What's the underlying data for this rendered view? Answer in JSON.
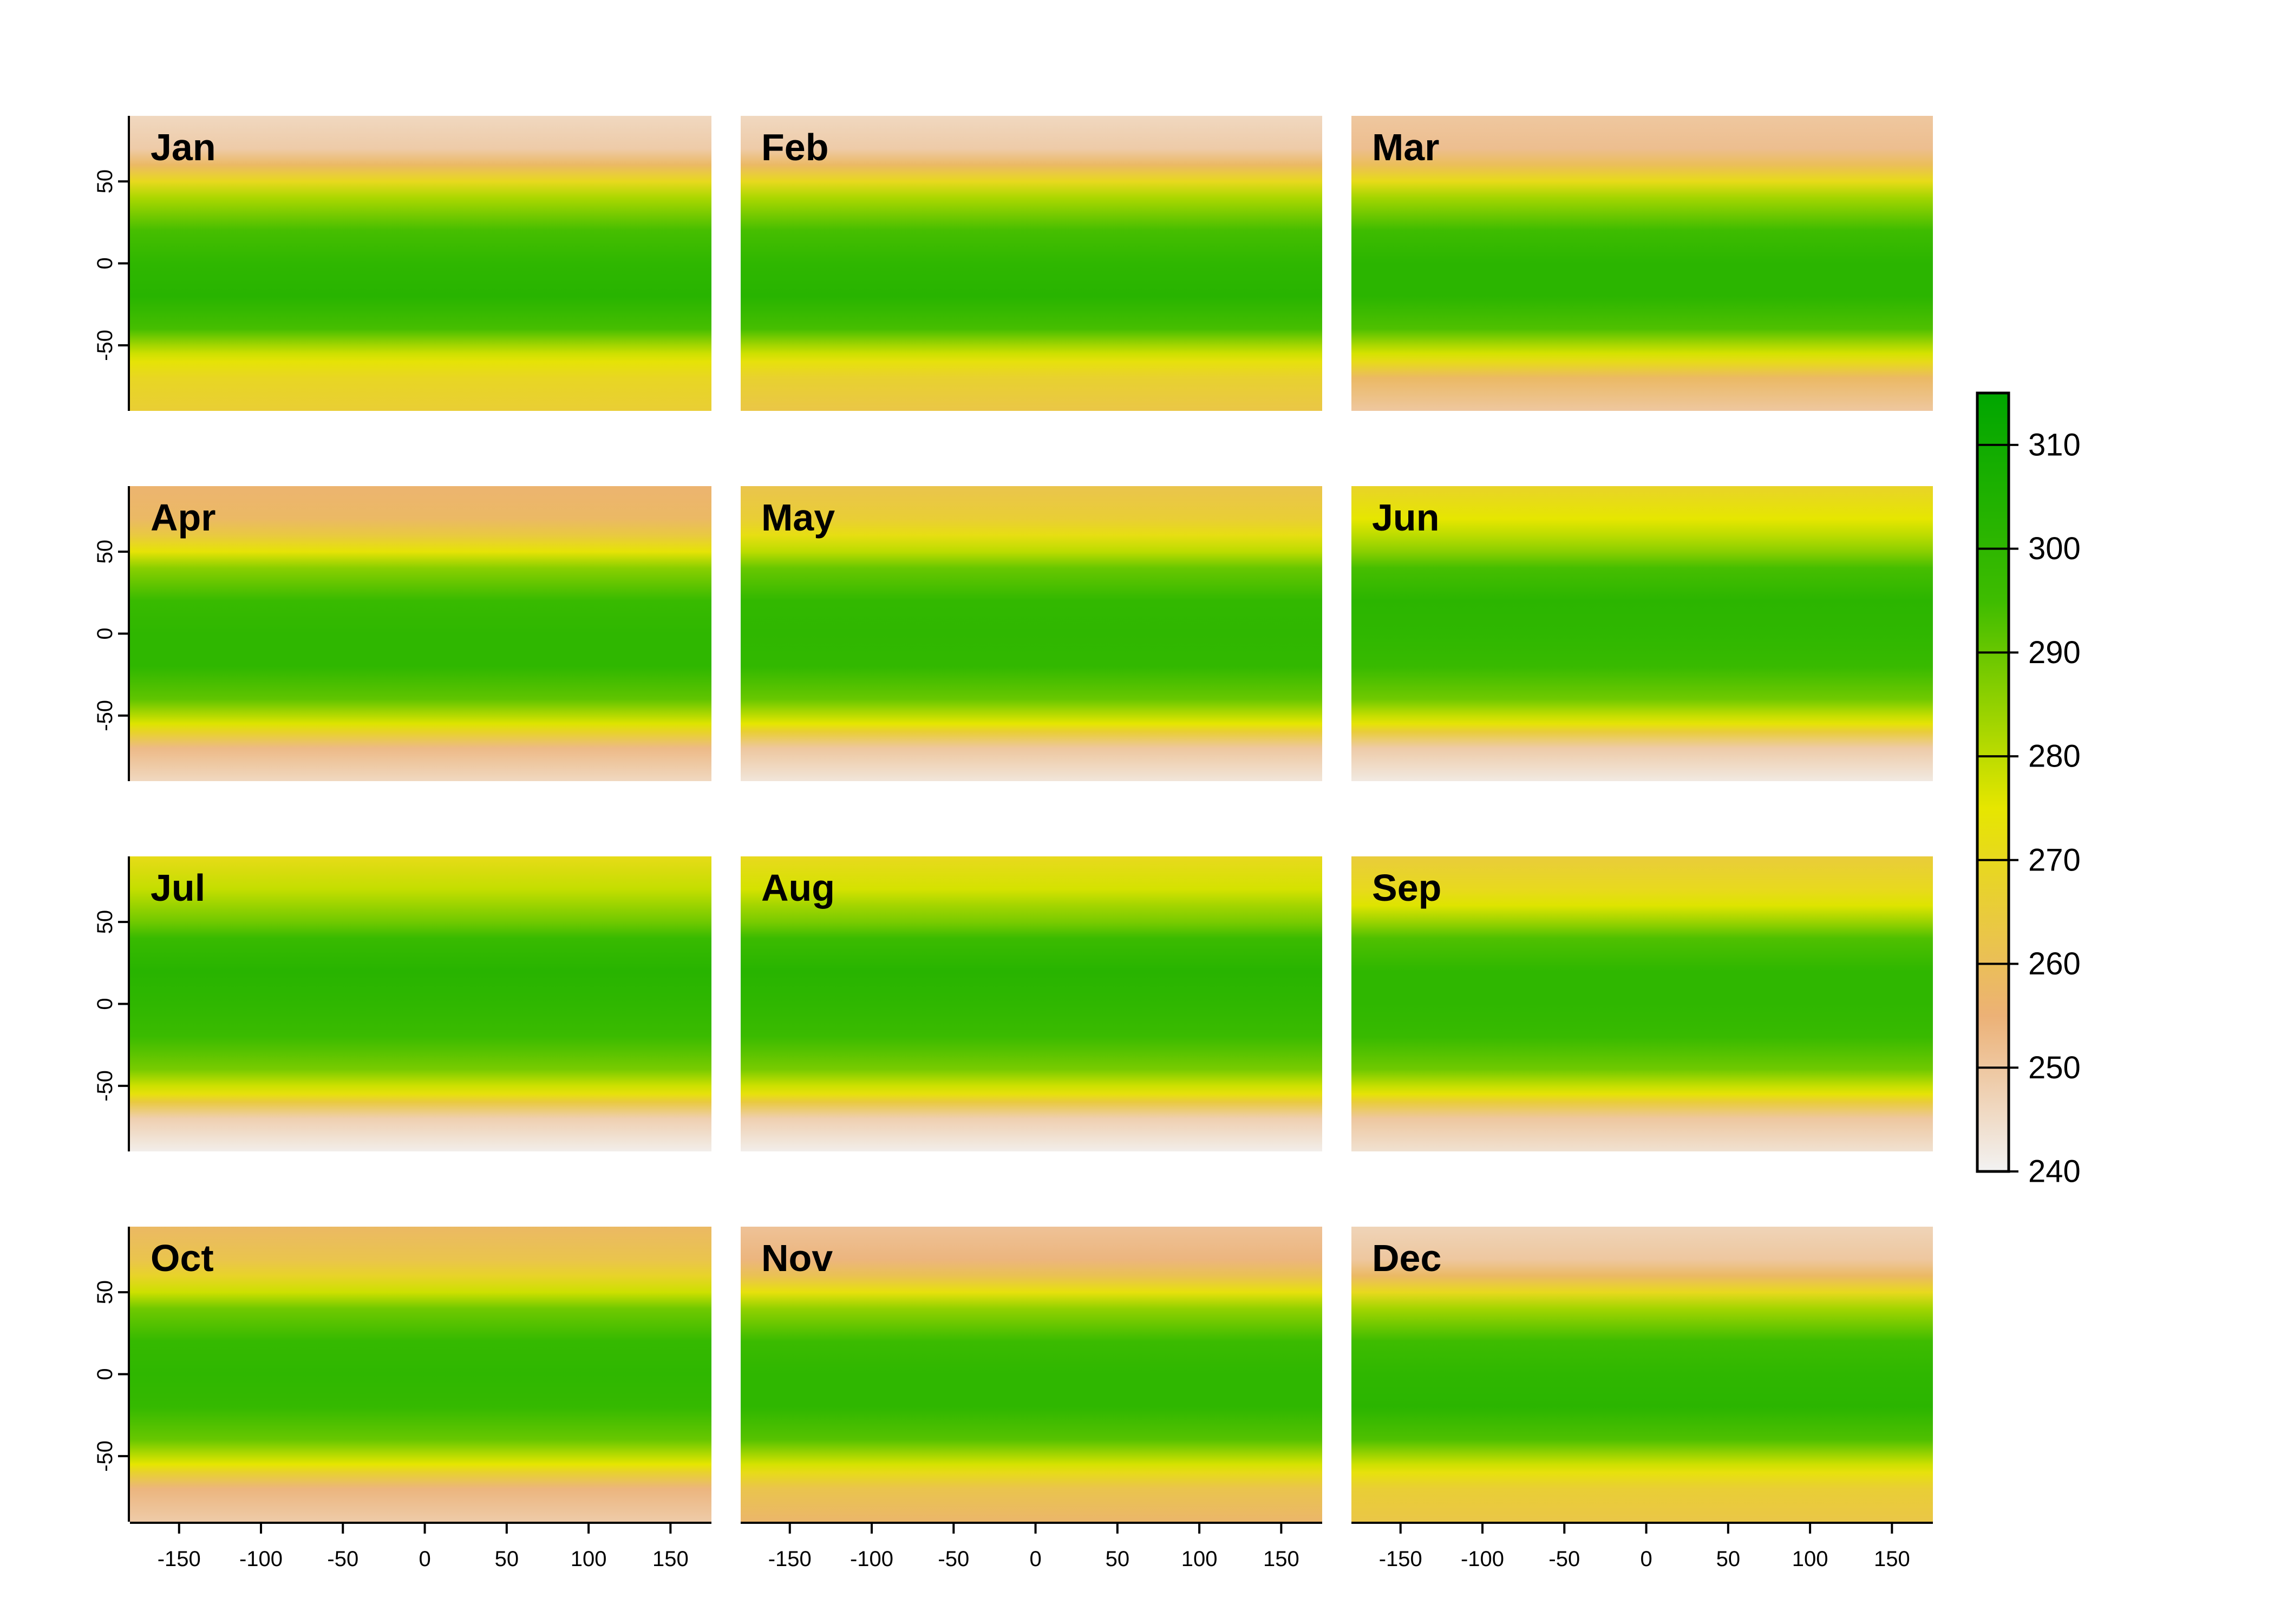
{
  "chart_data": {
    "type": "heatmap",
    "panels": [
      "Jan",
      "Feb",
      "Mar",
      "Apr",
      "May",
      "Jun",
      "Jul",
      "Aug",
      "Sep",
      "Oct",
      "Nov",
      "Dec"
    ],
    "layout": {
      "rows": 4,
      "cols": 3
    },
    "xlim": [
      -180,
      175
    ],
    "ylim": [
      -90,
      90
    ],
    "x_ticks": [
      -150,
      -100,
      -50,
      0,
      50,
      100,
      150
    ],
    "y_ticks": [
      50,
      0,
      -50
    ],
    "colorbar": {
      "range": [
        240,
        315
      ],
      "ticks": [
        310,
        300,
        290,
        280,
        270,
        260,
        250,
        240
      ],
      "colors": [
        "#f2f2f2",
        "#ecb176",
        "#e6e600",
        "#3ebc00",
        "#00a600"
      ],
      "stops": [
        240,
        255,
        275,
        295,
        315
      ]
    },
    "latitude_profiles": {
      "lat": [
        90,
        70,
        60,
        50,
        40,
        20,
        0,
        -20,
        -40,
        -50,
        -55,
        -60,
        -70,
        -90
      ],
      "Jan": [
        246,
        249,
        258,
        270,
        282,
        294,
        300,
        302,
        294,
        283,
        278,
        274,
        269,
        266
      ],
      "Feb": [
        246,
        249,
        258,
        270,
        282,
        294,
        300,
        302,
        294,
        283,
        278,
        273,
        267,
        263
      ],
      "Mar": [
        250,
        252,
        260,
        271,
        283,
        295,
        301,
        301,
        293,
        282,
        277,
        271,
        258,
        250
      ],
      "Apr": [
        256,
        258,
        264,
        274,
        286,
        297,
        300,
        300,
        291,
        281,
        276,
        268,
        253,
        246
      ],
      "May": [
        262,
        266,
        272,
        280,
        290,
        299,
        300,
        299,
        290,
        280,
        275,
        266,
        250,
        243
      ],
      "Jun": [
        268,
        275,
        280,
        286,
        294,
        301,
        300,
        297,
        289,
        279,
        274,
        265,
        249,
        242
      ],
      "Jul": [
        271,
        279,
        284,
        289,
        297,
        302,
        300,
        296,
        288,
        278,
        273,
        264,
        248,
        241
      ],
      "Aug": [
        270,
        277,
        283,
        288,
        296,
        302,
        300,
        296,
        288,
        278,
        273,
        264,
        248,
        241
      ],
      "Sep": [
        265,
        270,
        276,
        284,
        293,
        300,
        300,
        297,
        289,
        279,
        274,
        265,
        250,
        244
      ],
      "Oct": [
        258,
        262,
        268,
        278,
        289,
        298,
        300,
        298,
        290,
        280,
        275,
        267,
        254,
        249
      ],
      "Nov": [
        251,
        254,
        261,
        273,
        285,
        296,
        300,
        300,
        292,
        282,
        277,
        271,
        262,
        257
      ],
      "Dec": [
        247,
        250,
        258,
        270,
        283,
        295,
        300,
        301,
        293,
        283,
        278,
        273,
        266,
        263
      ]
    }
  }
}
